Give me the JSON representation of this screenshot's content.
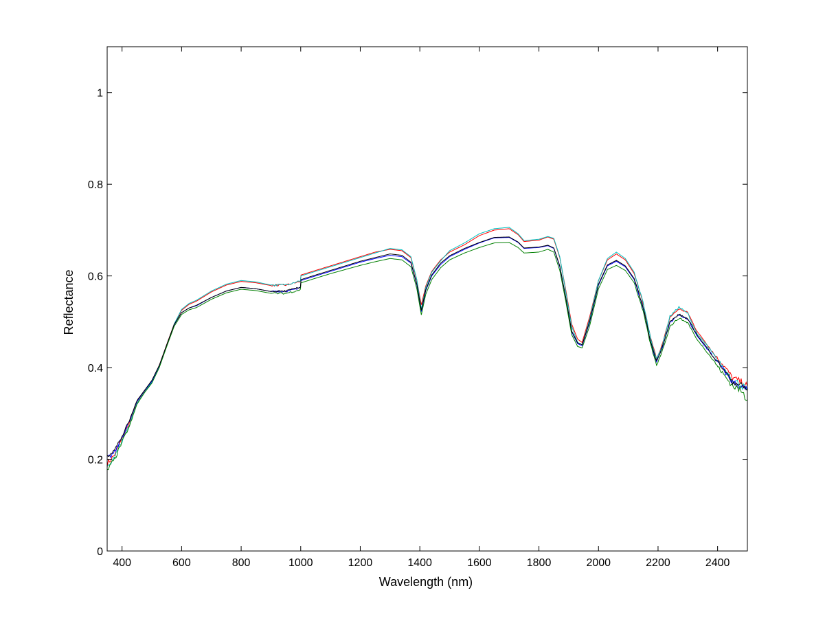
{
  "chart_data": {
    "type": "line",
    "title": "",
    "xlabel": "Wavelength (nm)",
    "ylabel": "Reflectance",
    "xlim": [
      350,
      2500
    ],
    "ylim": [
      0,
      1.1
    ],
    "xticks": [
      400,
      600,
      800,
      1000,
      1200,
      1400,
      1600,
      1800,
      2000,
      2200,
      2400
    ],
    "yticks": [
      0,
      0.2,
      0.4,
      0.6,
      0.8,
      1
    ],
    "ytick_labels": [
      "0",
      "0.2",
      "0.4",
      "0.6",
      "0.8",
      "1"
    ],
    "grid": false,
    "legend": "none",
    "series_colors": [
      "#ff0000",
      "#00bfbf",
      "#0000ff",
      "#007f00",
      "#000000"
    ],
    "x": [
      350,
      375,
      400,
      425,
      450,
      475,
      500,
      525,
      550,
      575,
      600,
      625,
      650,
      700,
      750,
      800,
      850,
      900,
      950,
      999,
      1001,
      1050,
      1100,
      1150,
      1200,
      1250,
      1300,
      1340,
      1370,
      1390,
      1405,
      1420,
      1440,
      1470,
      1500,
      1550,
      1600,
      1650,
      1700,
      1730,
      1750,
      1800,
      1830,
      1850,
      1870,
      1890,
      1910,
      1930,
      1945,
      1970,
      2000,
      2030,
      2060,
      2090,
      2120,
      2150,
      2175,
      2195,
      2215,
      2240,
      2270,
      2300,
      2330,
      2360,
      2390,
      2420,
      2450,
      2475,
      2500
    ],
    "series": [
      {
        "values": [
          0.19,
          0.21,
          0.245,
          0.28,
          0.325,
          0.348,
          0.37,
          0.405,
          0.45,
          0.495,
          0.525,
          0.538,
          0.545,
          0.565,
          0.58,
          0.588,
          0.585,
          0.579,
          0.58,
          0.588,
          0.602,
          0.612,
          0.622,
          0.632,
          0.642,
          0.652,
          0.658,
          0.655,
          0.64,
          0.59,
          0.537,
          0.578,
          0.61,
          0.635,
          0.652,
          0.668,
          0.688,
          0.7,
          0.703,
          0.69,
          0.675,
          0.678,
          0.685,
          0.68,
          0.64,
          0.57,
          0.495,
          0.462,
          0.455,
          0.51,
          0.59,
          0.635,
          0.648,
          0.635,
          0.605,
          0.54,
          0.465,
          0.42,
          0.452,
          0.51,
          0.528,
          0.52,
          0.48,
          0.455,
          0.428,
          0.405,
          0.378,
          0.37,
          0.36
        ]
      },
      {
        "values": [
          0.18,
          0.205,
          0.24,
          0.275,
          0.322,
          0.346,
          0.368,
          0.402,
          0.448,
          0.495,
          0.527,
          0.54,
          0.547,
          0.567,
          0.582,
          0.59,
          0.587,
          0.58,
          0.581,
          0.59,
          0.6,
          0.61,
          0.62,
          0.63,
          0.64,
          0.65,
          0.66,
          0.657,
          0.642,
          0.592,
          0.528,
          0.575,
          0.608,
          0.633,
          0.655,
          0.672,
          0.692,
          0.703,
          0.706,
          0.692,
          0.677,
          0.68,
          0.686,
          0.682,
          0.642,
          0.566,
          0.49,
          0.455,
          0.45,
          0.505,
          0.59,
          0.638,
          0.652,
          0.638,
          0.608,
          0.542,
          0.465,
          0.418,
          0.45,
          0.512,
          0.532,
          0.518,
          0.475,
          0.452,
          0.425,
          0.4,
          0.372,
          0.365,
          0.35
        ]
      },
      {
        "values": [
          0.2,
          0.215,
          0.248,
          0.283,
          0.326,
          0.349,
          0.37,
          0.404,
          0.449,
          0.493,
          0.52,
          0.53,
          0.535,
          0.553,
          0.567,
          0.575,
          0.572,
          0.566,
          0.566,
          0.574,
          0.59,
          0.6,
          0.61,
          0.62,
          0.63,
          0.638,
          0.645,
          0.642,
          0.628,
          0.58,
          0.522,
          0.568,
          0.6,
          0.625,
          0.642,
          0.658,
          0.672,
          0.683,
          0.684,
          0.673,
          0.66,
          0.662,
          0.666,
          0.66,
          0.62,
          0.552,
          0.478,
          0.452,
          0.448,
          0.498,
          0.58,
          0.622,
          0.632,
          0.62,
          0.592,
          0.53,
          0.455,
          0.412,
          0.445,
          0.498,
          0.515,
          0.505,
          0.47,
          0.445,
          0.42,
          0.395,
          0.368,
          0.36,
          0.35
        ]
      },
      {
        "values": [
          0.175,
          0.2,
          0.238,
          0.272,
          0.32,
          0.345,
          0.366,
          0.4,
          0.446,
          0.49,
          0.516,
          0.526,
          0.531,
          0.549,
          0.563,
          0.571,
          0.568,
          0.562,
          0.562,
          0.57,
          0.585,
          0.595,
          0.605,
          0.614,
          0.623,
          0.631,
          0.638,
          0.635,
          0.62,
          0.572,
          0.515,
          0.56,
          0.592,
          0.618,
          0.635,
          0.65,
          0.662,
          0.672,
          0.673,
          0.662,
          0.65,
          0.652,
          0.658,
          0.652,
          0.612,
          0.545,
          0.472,
          0.446,
          0.443,
          0.49,
          0.572,
          0.614,
          0.623,
          0.612,
          0.585,
          0.522,
          0.45,
          0.405,
          0.438,
          0.49,
          0.508,
          0.498,
          0.462,
          0.438,
          0.412,
          0.385,
          0.36,
          0.352,
          0.33
        ]
      },
      {
        "values": [
          0.21,
          0.22,
          0.25,
          0.285,
          0.328,
          0.35,
          0.372,
          0.405,
          0.45,
          0.494,
          0.52,
          0.53,
          0.536,
          0.553,
          0.567,
          0.575,
          0.572,
          0.566,
          0.567,
          0.575,
          0.592,
          0.602,
          0.612,
          0.622,
          0.632,
          0.64,
          0.648,
          0.645,
          0.63,
          0.582,
          0.525,
          0.57,
          0.602,
          0.628,
          0.644,
          0.66,
          0.673,
          0.684,
          0.685,
          0.674,
          0.661,
          0.663,
          0.667,
          0.661,
          0.622,
          0.554,
          0.48,
          0.454,
          0.45,
          0.5,
          0.582,
          0.624,
          0.634,
          0.622,
          0.594,
          0.532,
          0.457,
          0.414,
          0.447,
          0.5,
          0.516,
          0.506,
          0.472,
          0.447,
          0.421,
          0.396,
          0.37,
          0.362,
          0.352
        ]
      }
    ]
  }
}
